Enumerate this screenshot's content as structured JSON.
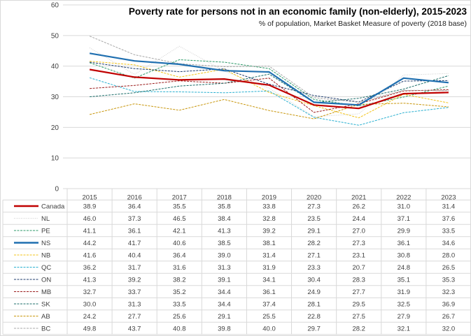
{
  "chart_data": {
    "type": "line",
    "title": "Poverty rate for persons not in an economic family (non-elderly),  2015-2023",
    "subtitle": "% of population, Market Basket Measure of poverty (2018 base)",
    "xlabel": "",
    "ylabel": "",
    "ylim": [
      0,
      60
    ],
    "yticks": [
      0,
      10,
      20,
      30,
      40,
      50,
      60
    ],
    "grid": true,
    "legend": "data-table-below",
    "categories": [
      "2015",
      "2016",
      "2017",
      "2018",
      "2019",
      "2020",
      "2021",
      "2022",
      "2023"
    ],
    "series": [
      {
        "name": "Canada",
        "color": "#c00000",
        "style": "solid",
        "values": [
          38.9,
          36.4,
          35.5,
          35.8,
          33.8,
          27.3,
          26.2,
          31.0,
          31.4
        ]
      },
      {
        "name": "NL",
        "color": "#d0d0d0",
        "style": "dotted",
        "values": [
          46.0,
          37.3,
          46.5,
          38.4,
          32.8,
          23.5,
          24.4,
          37.1,
          37.6
        ]
      },
      {
        "name": "PE",
        "color": "#2e9a6a",
        "style": "dashed",
        "values": [
          41.1,
          36.1,
          42.1,
          41.3,
          39.2,
          29.1,
          27.0,
          29.9,
          33.5
        ]
      },
      {
        "name": "NS",
        "color": "#1f6fb0",
        "style": "solid",
        "values": [
          44.2,
          41.7,
          40.6,
          38.5,
          38.1,
          28.2,
          27.3,
          36.1,
          34.6
        ]
      },
      {
        "name": "NB",
        "color": "#f2c318",
        "style": "dashed",
        "values": [
          41.6,
          40.4,
          36.4,
          39.0,
          31.4,
          27.1,
          23.1,
          30.8,
          28.0
        ]
      },
      {
        "name": "QC",
        "color": "#2ab0d0",
        "style": "dashed",
        "values": [
          36.2,
          31.7,
          31.6,
          31.3,
          31.9,
          23.3,
          20.7,
          24.8,
          26.5
        ]
      },
      {
        "name": "ON",
        "color": "#1f3c6e",
        "style": "dashed",
        "values": [
          41.3,
          39.2,
          38.2,
          39.1,
          34.1,
          30.4,
          28.3,
          35.1,
          35.3
        ]
      },
      {
        "name": "MB",
        "color": "#9b1c1c",
        "style": "dashed",
        "values": [
          32.7,
          33.7,
          35.2,
          34.4,
          36.1,
          24.9,
          27.7,
          31.9,
          32.3
        ]
      },
      {
        "name": "SK",
        "color": "#1c6e6a",
        "style": "dashed",
        "values": [
          30.0,
          31.3,
          33.5,
          34.4,
          37.4,
          28.1,
          29.5,
          32.5,
          36.9
        ]
      },
      {
        "name": "AB",
        "color": "#c8960c",
        "style": "dashed",
        "values": [
          24.2,
          27.7,
          25.6,
          29.1,
          25.5,
          22.8,
          27.5,
          27.9,
          26.7
        ]
      },
      {
        "name": "BC",
        "color": "#a8a8a8",
        "style": "dashed",
        "values": [
          49.8,
          43.7,
          40.8,
          39.8,
          40.0,
          29.7,
          28.2,
          32.1,
          32.0
        ]
      }
    ]
  }
}
